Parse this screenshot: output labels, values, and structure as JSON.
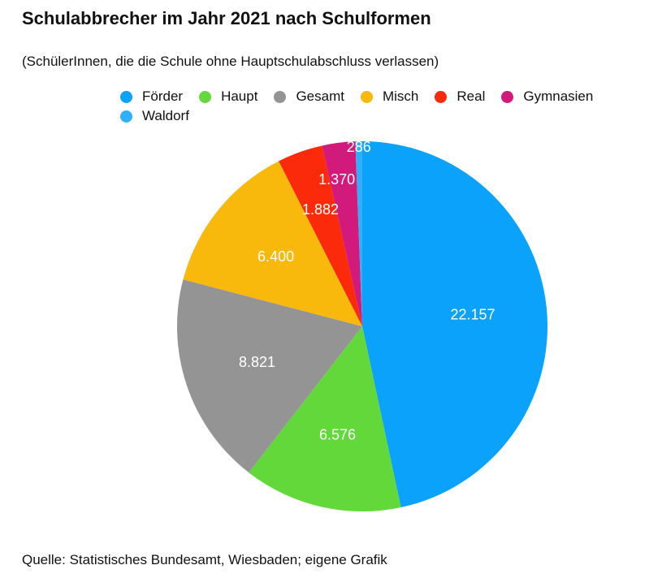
{
  "title": "Schulabbrecher im Jahr 2021 nach Schulformen",
  "subtitle": "(SchülerInnen, die die Schule ohne Hauptschulabschluss verlassen)",
  "source": "Quelle: Statistisches Bundesamt, Wiesbaden; eigene Grafik",
  "chart_data": {
    "type": "pie",
    "title": "Schulabbrecher im Jahr 2021 nach Schulformen",
    "legend_placement": "top",
    "start": "12 o'clock, clockwise",
    "slices": [
      {
        "name": "Förder",
        "value": 22157,
        "label": "22.157",
        "color": "#0aa2fa"
      },
      {
        "name": "Haupt",
        "value": 6576,
        "label": "6.576",
        "color": "#62d83a"
      },
      {
        "name": "Gesamt",
        "value": 8821,
        "label": "8.821",
        "color": "#949494"
      },
      {
        "name": "Misch",
        "value": 6400,
        "label": "6.400",
        "color": "#f8b80c"
      },
      {
        "name": "Real",
        "value": 1882,
        "label": "1.882",
        "color": "#fa2a0a"
      },
      {
        "name": "Gymnasien",
        "value": 1370,
        "label": "1.370",
        "color": "#d21a7c"
      },
      {
        "name": "Waldorf",
        "value": 286,
        "label": "286",
        "color": "#30b0f8"
      }
    ]
  }
}
